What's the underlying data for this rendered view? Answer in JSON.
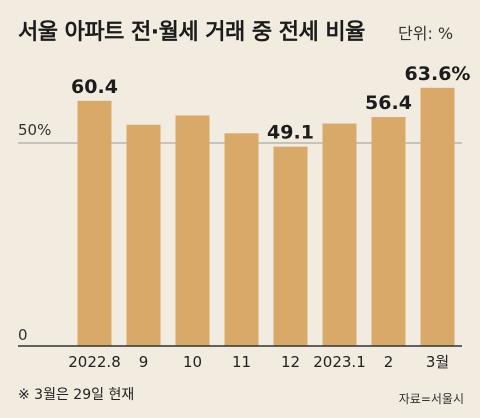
{
  "header": {
    "title": "서울 아파트 전·월세 거래 중 전세 비율",
    "unit": "단위: %"
  },
  "footer": {
    "note": "※ 3월은 29일 현재",
    "source": "자료=서울시"
  },
  "colors": {
    "bar": "#d9a96a",
    "background": "#f2ebe0",
    "reference_line": "#9a9a9a",
    "axis": "#333333"
  },
  "chart_data": {
    "type": "bar",
    "title": "서울 아파트 전·월세 거래 중 전세 비율",
    "xlabel": "",
    "ylabel": "",
    "ylim": [
      0,
      67
    ],
    "categories": [
      "2022.8",
      "9",
      "10",
      "11",
      "12",
      "2023.1",
      "2",
      "3월"
    ],
    "values": [
      60.4,
      54.5,
      56.8,
      52.4,
      49.1,
      54.8,
      56.4,
      63.6
    ],
    "data_labels": [
      "60.4",
      "",
      "",
      "",
      "49.1",
      "",
      "56.4",
      "63.6%"
    ],
    "y_ticks": [
      {
        "value": 0,
        "label": "0"
      },
      {
        "value": 50,
        "label": "50%"
      }
    ],
    "reference_line": 50,
    "grid": false,
    "legend": "none"
  }
}
